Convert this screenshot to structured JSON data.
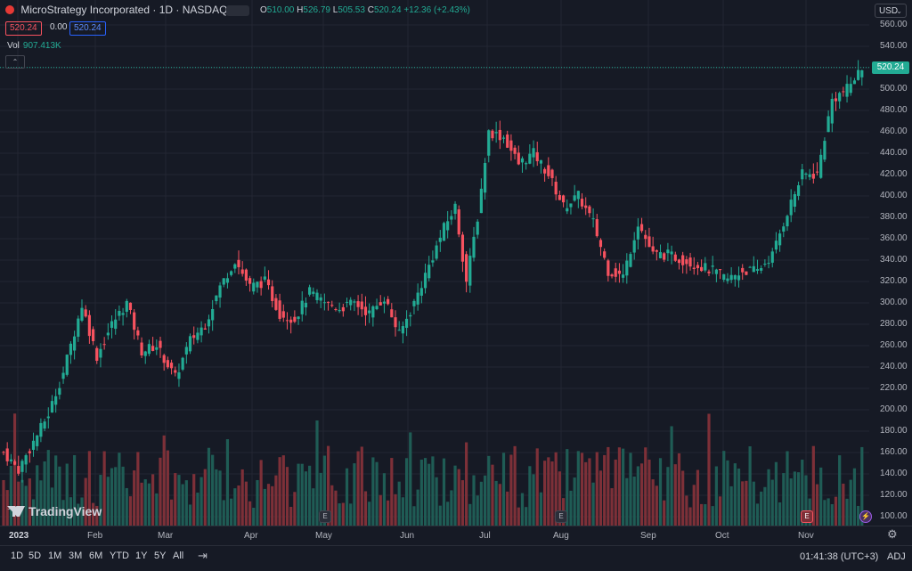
{
  "header": {
    "symbol_title": "MicroStrategy Incorporated · 1D · NASDAQ",
    "ohlc": {
      "open_label": "O",
      "open": "510.00",
      "high_label": "H",
      "high": "526.79",
      "low_label": "L",
      "low": "505.53",
      "close_label": "C",
      "close": "520.24",
      "change": "+12.36 (+2.43%)"
    },
    "sell_price": "520.24",
    "spread": "0.00",
    "buy_price": "520.24",
    "volume_label": "Vol",
    "volume_value": "907.413K"
  },
  "currency": "USD",
  "last_price_tag": "520.24",
  "logo_text": "TradingView",
  "time_ranges": [
    "1D",
    "5D",
    "1M",
    "3M",
    "6M",
    "YTD",
    "1Y",
    "5Y",
    "All"
  ],
  "clock": "01:41:38 (UTC+3)",
  "adj_label": "ADJ",
  "event_markers": [
    "E",
    "E",
    "E"
  ],
  "colors": {
    "up": "#22ab94",
    "down": "#f7525f",
    "up_vol": "#1f5c55",
    "down_vol": "#7d3038",
    "background": "#161a25"
  },
  "chart_data": {
    "type": "candlestick",
    "title": "MicroStrategy Incorporated · 1D · NASDAQ",
    "x_labels": [
      "2023",
      "Feb",
      "Mar",
      "Apr",
      "May",
      "Jun",
      "Jul",
      "Aug",
      "Sep",
      "Oct",
      "Nov"
    ],
    "y_ticks": [
      "560.00",
      "540.00",
      "520.00",
      "500.00",
      "480.00",
      "460.00",
      "440.00",
      "420.00",
      "400.00",
      "380.00",
      "360.00",
      "340.00",
      "320.00",
      "300.00",
      "280.00",
      "260.00",
      "240.00",
      "220.00",
      "200.00",
      "180.00",
      "160.00",
      "140.00",
      "120.00",
      "100.00"
    ],
    "ylim": [
      100,
      560
    ],
    "close_path": [
      [
        0,
        160
      ],
      [
        4,
        144
      ],
      [
        8,
        170
      ],
      [
        12,
        196
      ],
      [
        16,
        235
      ],
      [
        21,
        298
      ],
      [
        25,
        250
      ],
      [
        29,
        280
      ],
      [
        33,
        300
      ],
      [
        37,
        255
      ],
      [
        41,
        260
      ],
      [
        46,
        230
      ],
      [
        50,
        265
      ],
      [
        54,
        280
      ],
      [
        58,
        315
      ],
      [
        62,
        340
      ],
      [
        66,
        315
      ],
      [
        70,
        320
      ],
      [
        74,
        290
      ],
      [
        78,
        285
      ],
      [
        82,
        310
      ],
      [
        86,
        300
      ],
      [
        90,
        295
      ],
      [
        94,
        300
      ],
      [
        98,
        290
      ],
      [
        102,
        305
      ],
      [
        106,
        270
      ],
      [
        110,
        300
      ],
      [
        114,
        335
      ],
      [
        118,
        370
      ],
      [
        121,
        390
      ],
      [
        124,
        320
      ],
      [
        127,
        380
      ],
      [
        130,
        460
      ],
      [
        134,
        455
      ],
      [
        138,
        430
      ],
      [
        142,
        440
      ],
      [
        146,
        420
      ],
      [
        150,
        390
      ],
      [
        154,
        400
      ],
      [
        158,
        375
      ],
      [
        162,
        330
      ],
      [
        166,
        325
      ],
      [
        170,
        375
      ],
      [
        174,
        345
      ],
      [
        178,
        345
      ],
      [
        182,
        340
      ],
      [
        186,
        335
      ],
      [
        190,
        330
      ],
      [
        194,
        322
      ],
      [
        198,
        330
      ],
      [
        202,
        330
      ],
      [
        206,
        345
      ],
      [
        210,
        385
      ],
      [
        214,
        420
      ],
      [
        218,
        420
      ],
      [
        222,
        490
      ],
      [
        226,
        500
      ],
      [
        230,
        520
      ]
    ],
    "volume_range": [
      0,
      1
    ]
  }
}
